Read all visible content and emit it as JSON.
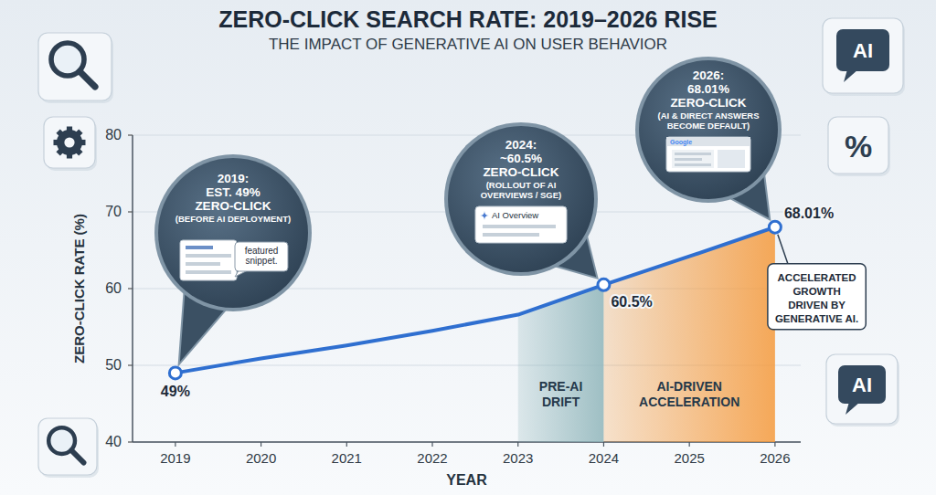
{
  "chart_data": {
    "type": "line",
    "title": "ZERO-CLICK SEARCH RATE: 2019–2026 RISE",
    "subtitle": "THE IMPACT OF GENERATIVE AI ON USER BEHAVIOR",
    "x_label": "YEAR",
    "y_label": "ZERO-CLICK RATE (%)",
    "x": [
      2019,
      2020,
      2021,
      2022,
      2023,
      2024,
      2025,
      2026
    ],
    "values": [
      49,
      50.9,
      52.6,
      54.5,
      56.6,
      60.5,
      64.2,
      68.01
    ],
    "value_labels": [
      "49%",
      null,
      null,
      null,
      null,
      "60.5%",
      null,
      "68.01%"
    ],
    "data_labels": true,
    "color": "#2f6fd0",
    "marker": "circle",
    "line_style": "solid",
    "xlim": [
      2018.5,
      2026.3
    ],
    "xticks": [
      2019,
      2020,
      2021,
      2022,
      2023,
      2024,
      2025,
      2026
    ],
    "ylim": [
      40,
      80
    ],
    "yticks": [
      40,
      50,
      60,
      70,
      80
    ],
    "grid": true,
    "regions": [
      {
        "x": [
          2023,
          2024
        ],
        "label": "PRE-AI DRIFT",
        "color": "#8fb5ba"
      },
      {
        "x": [
          2024,
          2026
        ],
        "label": "AI-DRIVEN ACCELERATION",
        "color": "#f59a3c"
      }
    ],
    "annotations": [
      {
        "x": 2019,
        "title": "2019:",
        "lines": [
          "EST. 49%",
          "ZERO-CLICK",
          "(BEFORE AI DEPLOYMENT)"
        ],
        "image_text": "featured snippet."
      },
      {
        "x": 2024,
        "title": "2024:",
        "lines": [
          "~60.5%",
          "ZERO-CLICK",
          "(ROLLOUT OF AI",
          "OVERVIEWS / SGE)"
        ],
        "image_text": "AI Overview"
      },
      {
        "x": 2026,
        "title": "2026:",
        "lines": [
          "68.01%",
          "ZERO-CLICK",
          "(AI & DIRECT ANSWERS",
          "BECOME DEFAULT)"
        ],
        "image_text": "Google"
      }
    ],
    "note": {
      "x": 2026,
      "lines": [
        "ACCELERATED",
        "GROWTH",
        "DRIVEN BY",
        "GENERATIVE AI."
      ]
    },
    "icons": {
      "right": [
        "AI",
        "%",
        "AI"
      ]
    }
  }
}
